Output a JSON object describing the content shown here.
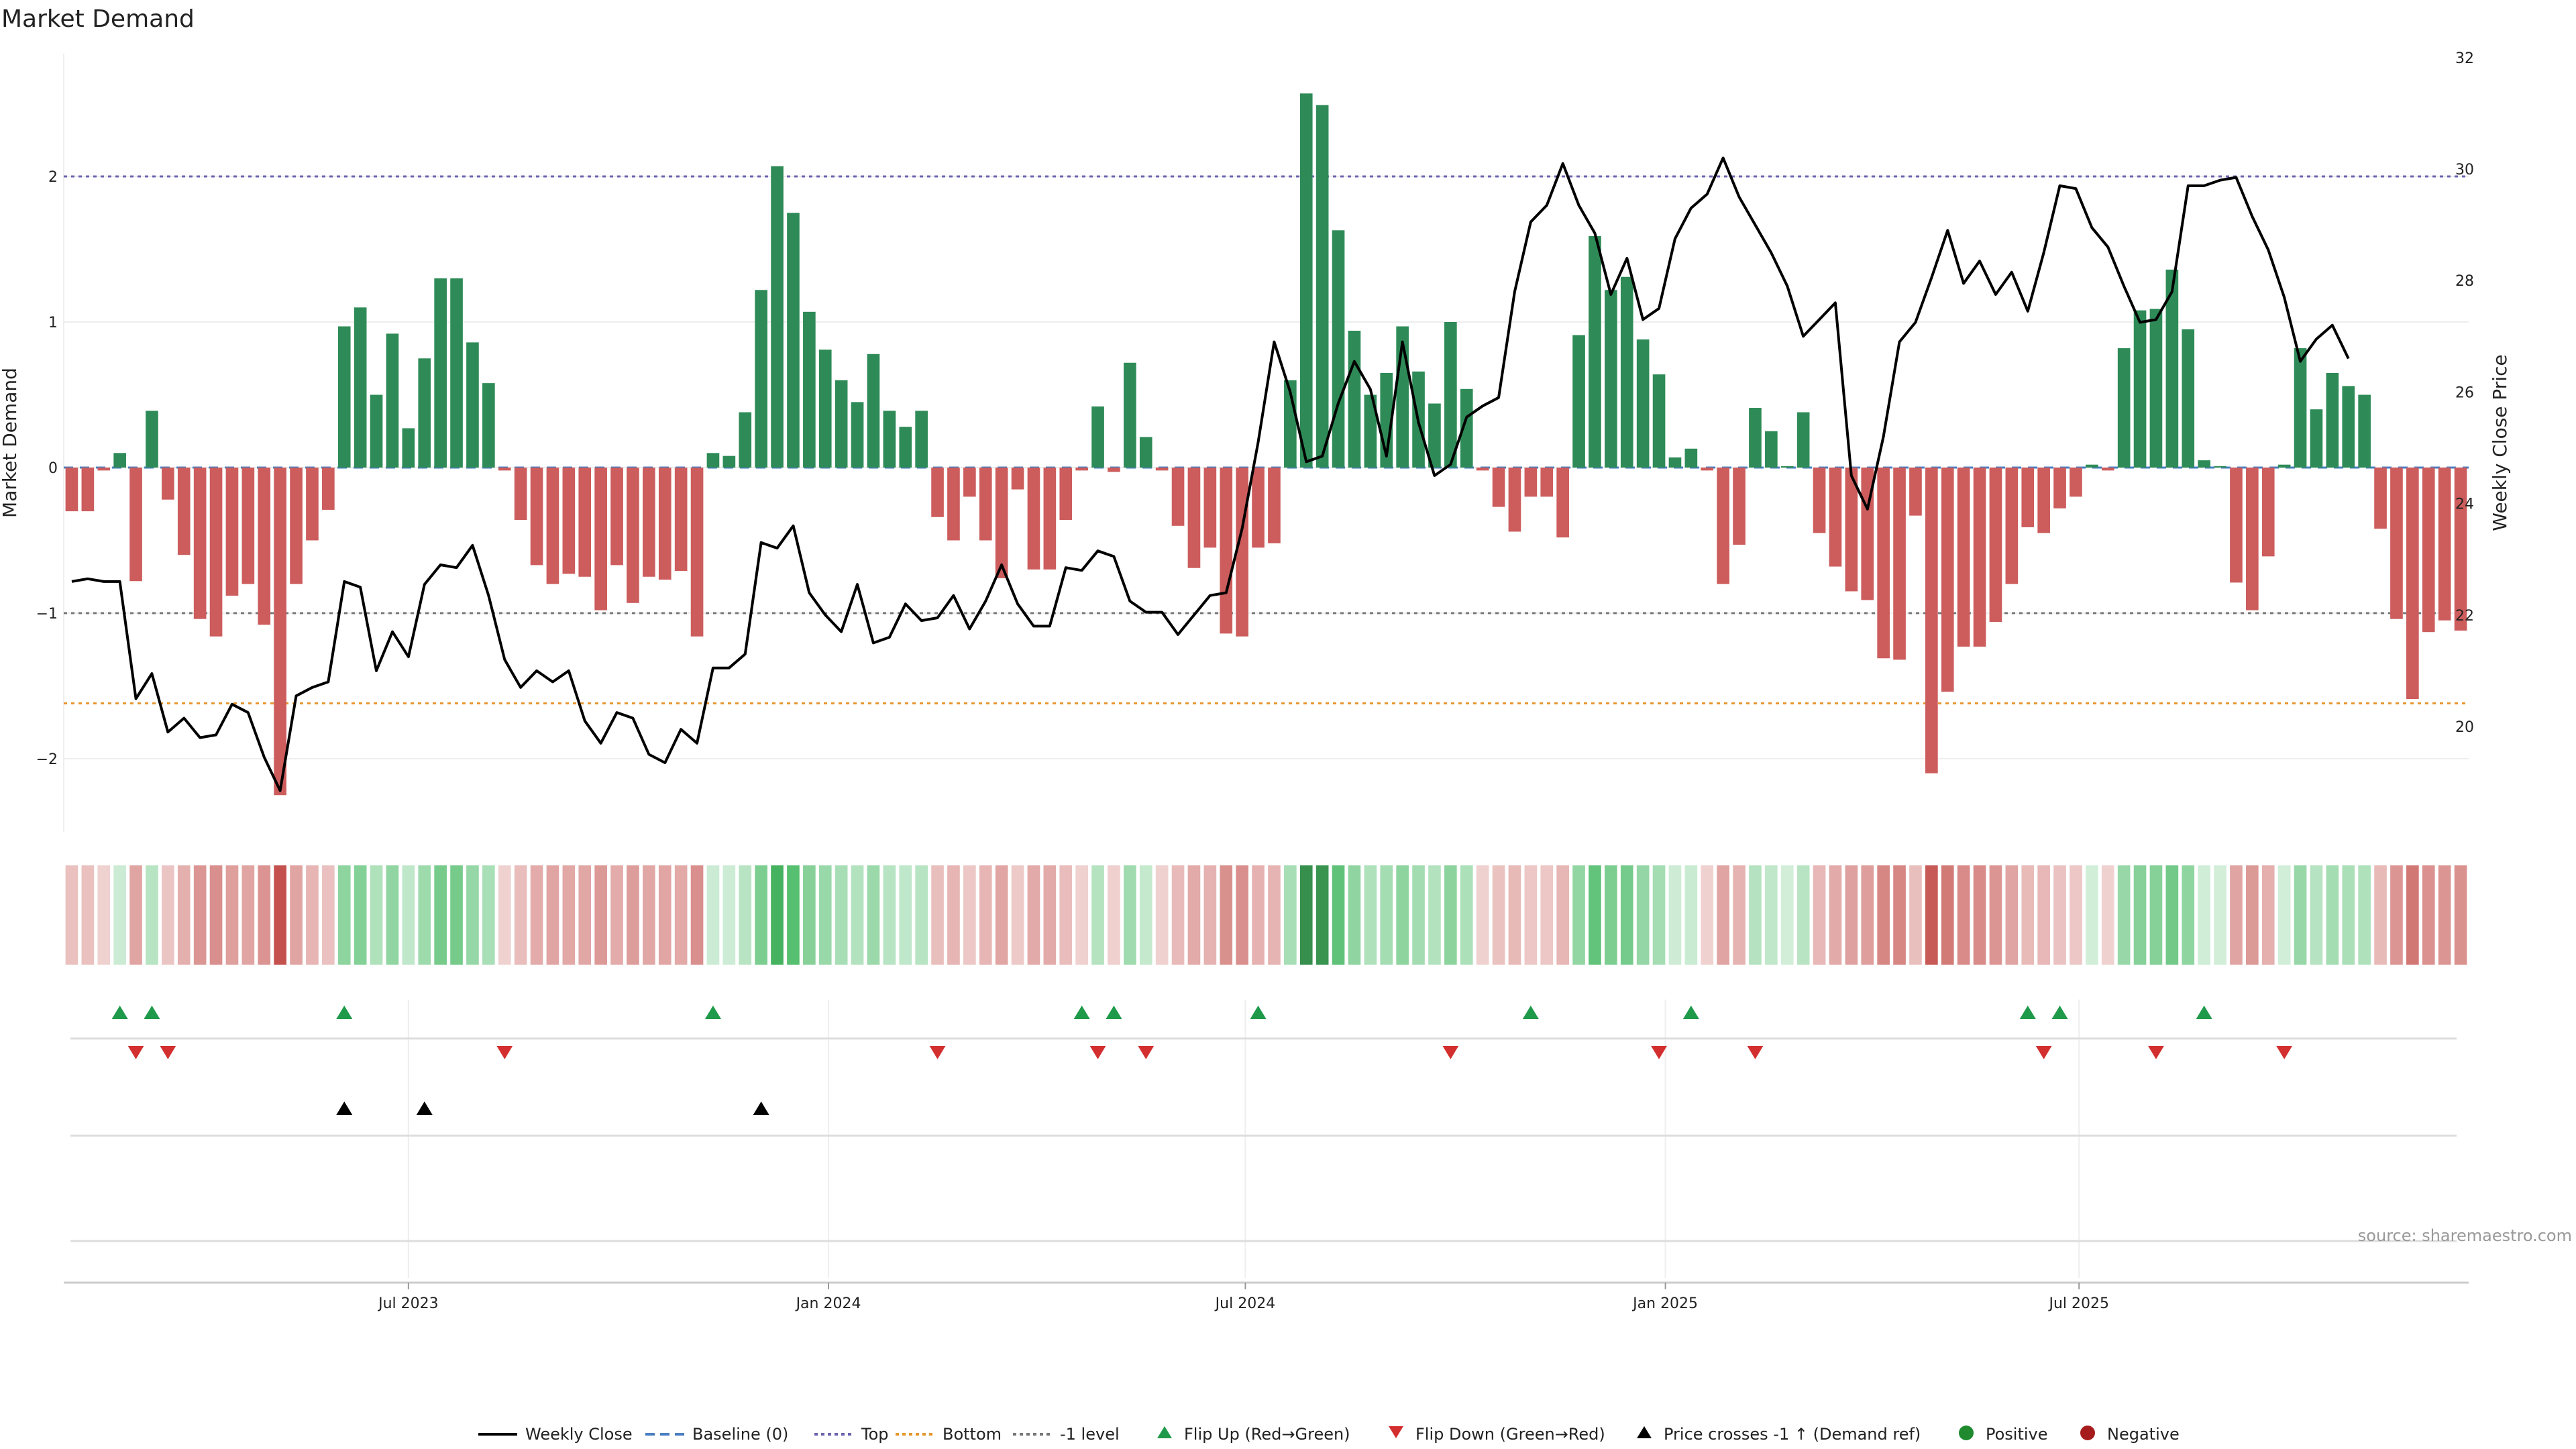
{
  "chart_data": {
    "type": "bar",
    "title": "Market Demand",
    "ylabel": "Market Demand",
    "y2label": "Weekly Close Price",
    "ylim": [
      -2.5,
      2.8
    ],
    "y2lim": [
      18.6,
      32.2
    ],
    "yticks": [
      -2,
      -1,
      0,
      1,
      2
    ],
    "y2ticks": [
      20,
      22,
      24,
      26,
      28,
      30,
      32
    ],
    "xticks": [
      "Jul 2023",
      "Jan 2024",
      "Jul 2024",
      "Jan 2025",
      "Jul 2025"
    ],
    "xtick_index": [
      21.5,
      47.7,
      73.7,
      99.9,
      125.7
    ],
    "reference_levels": {
      "top": 2.0,
      "bottom": -1.62,
      "minus_one": -1.0
    },
    "series": [
      {
        "name": "Market Demand",
        "values": [
          -0.3,
          -0.3,
          -0.02,
          0.1,
          -0.78,
          0.39,
          -0.22,
          -0.6,
          -1.04,
          -1.16,
          -0.88,
          -0.8,
          -1.08,
          -2.25,
          -0.8,
          -0.5,
          -0.29,
          0.97,
          1.1,
          0.5,
          0.92,
          0.27,
          0.75,
          1.3,
          1.3,
          0.86,
          0.58,
          -0.02,
          -0.36,
          -0.67,
          -0.8,
          -0.73,
          -0.75,
          -0.98,
          -0.67,
          -0.93,
          -0.75,
          -0.77,
          -0.71,
          -1.16,
          0.1,
          0.08,
          0.38,
          1.22,
          2.07,
          1.75,
          1.07,
          0.81,
          0.6,
          0.45,
          0.78,
          0.39,
          0.28,
          0.39,
          -0.34,
          -0.5,
          -0.2,
          -0.5,
          -0.76,
          -0.15,
          -0.7,
          -0.7,
          -0.36,
          -0.02,
          0.42,
          -0.03,
          0.72,
          0.21,
          -0.02,
          -0.4,
          -0.69,
          -0.55,
          -1.14,
          -1.16,
          -0.55,
          -0.52,
          0.6,
          2.57,
          2.49,
          1.63,
          0.94,
          0.5,
          0.65,
          0.97,
          0.66,
          0.44,
          1.0,
          0.54,
          -0.02,
          -0.27,
          -0.44,
          -0.2,
          -0.2,
          -0.48,
          0.91,
          1.59,
          1.22,
          1.31,
          0.88,
          0.64,
          0.07,
          0.13,
          -0.02,
          -0.8,
          -0.53,
          0.41,
          0.25,
          0.01,
          0.38,
          -0.45,
          -0.68,
          -0.85,
          -0.91,
          -1.31,
          -1.32,
          -0.33,
          -2.1,
          -1.54,
          -1.23,
          -1.23,
          -1.06,
          -0.8,
          -0.41,
          -0.45,
          -0.28,
          -0.2,
          0.02,
          -0.02,
          0.82,
          1.08,
          1.09,
          1.36,
          0.95,
          0.05,
          0.01,
          -0.79,
          -0.98,
          -0.61,
          0.02,
          0.82,
          0.4,
          0.65,
          0.56,
          0.5,
          -0.42,
          -1.04,
          -1.59,
          -1.13,
          -1.05,
          -1.12
        ]
      },
      {
        "name": "Weekly Close",
        "values": [
          22.6,
          22.65,
          22.6,
          22.6,
          20.5,
          20.95,
          19.9,
          20.15,
          19.8,
          19.85,
          20.4,
          20.25,
          19.45,
          18.85,
          20.55,
          20.7,
          20.8,
          22.6,
          22.5,
          21.0,
          21.7,
          21.25,
          22.55,
          22.9,
          22.85,
          23.25,
          22.35,
          21.2,
          20.7,
          21.0,
          20.8,
          21.0,
          20.1,
          19.7,
          20.25,
          20.15,
          19.5,
          19.35,
          19.95,
          19.7,
          21.05,
          21.05,
          21.3,
          23.3,
          23.2,
          23.6,
          22.4,
          22.0,
          21.7,
          22.55,
          21.5,
          21.6,
          22.2,
          21.9,
          21.95,
          22.35,
          21.75,
          22.25,
          22.9,
          22.2,
          21.8,
          21.8,
          22.85,
          22.8,
          23.15,
          23.05,
          22.25,
          22.05,
          22.05,
          21.65,
          22.0,
          22.35,
          22.4,
          23.55,
          25.1,
          26.9,
          26.0,
          24.75,
          24.85,
          25.8,
          26.55,
          26.05,
          24.85,
          26.9,
          25.45,
          24.5,
          24.7,
          25.55,
          25.75,
          25.9,
          27.8,
          29.05,
          29.35,
          30.1,
          29.35,
          28.85,
          27.75,
          28.4,
          27.3,
          27.5,
          28.75,
          29.3,
          29.55,
          30.2,
          29.5,
          29.0,
          28.5,
          27.9,
          27.0,
          27.3,
          27.6,
          24.5,
          23.9,
          25.2,
          26.9,
          27.25,
          28.05,
          28.9,
          27.95,
          28.35,
          27.75,
          28.15,
          27.45,
          28.5,
          29.7,
          29.65,
          28.95,
          28.6,
          27.9,
          27.25,
          27.3,
          27.8,
          29.7,
          29.7,
          29.8,
          29.85,
          29.15,
          28.55,
          27.7,
          26.55,
          26.95,
          27.2,
          26.6
        ]
      }
    ],
    "strip": {
      "flip_up_index": [
        3,
        5,
        17,
        40,
        63,
        65,
        74,
        91,
        101,
        122,
        124,
        133
      ],
      "flip_down_index": [
        4,
        6,
        27,
        54,
        64,
        67,
        86,
        99,
        105,
        123,
        130,
        138
      ],
      "price_cross_index": [
        17,
        22,
        43
      ]
    },
    "legend": [
      {
        "label": "Weekly Close",
        "symbol": "line-solid",
        "color": "#000000"
      },
      {
        "label": "Baseline (0)",
        "symbol": "line-dashed",
        "color": "#4a7fc1"
      },
      {
        "label": "Top",
        "symbol": "line-dotted",
        "color": "#6b64b0"
      },
      {
        "label": "Bottom",
        "symbol": "line-dotted",
        "color": "#e6962e"
      },
      {
        "label": "-1 level",
        "symbol": "line-dotted",
        "color": "#777777"
      },
      {
        "label": "Flip Up (Red→Green)",
        "symbol": "triangle-up",
        "color": "#1f9a4a"
      },
      {
        "label": "Flip Down (Green→Red)",
        "symbol": "triangle-down",
        "color": "#d32f2f"
      },
      {
        "label": "Price crosses -1 ↑ (Demand ref)",
        "symbol": "triangle-up",
        "color": "#000000"
      },
      {
        "label": "Positive",
        "symbol": "circle",
        "color": "#1f8a2e"
      },
      {
        "label": "Negative",
        "symbol": "circle",
        "color": "#a61c1c"
      }
    ],
    "colors": {
      "positive_bar": "#2e8b57",
      "negative_bar": "#cd5c5c",
      "price_line": "#000000"
    },
    "source_note": "source: sharemaestro.com"
  }
}
